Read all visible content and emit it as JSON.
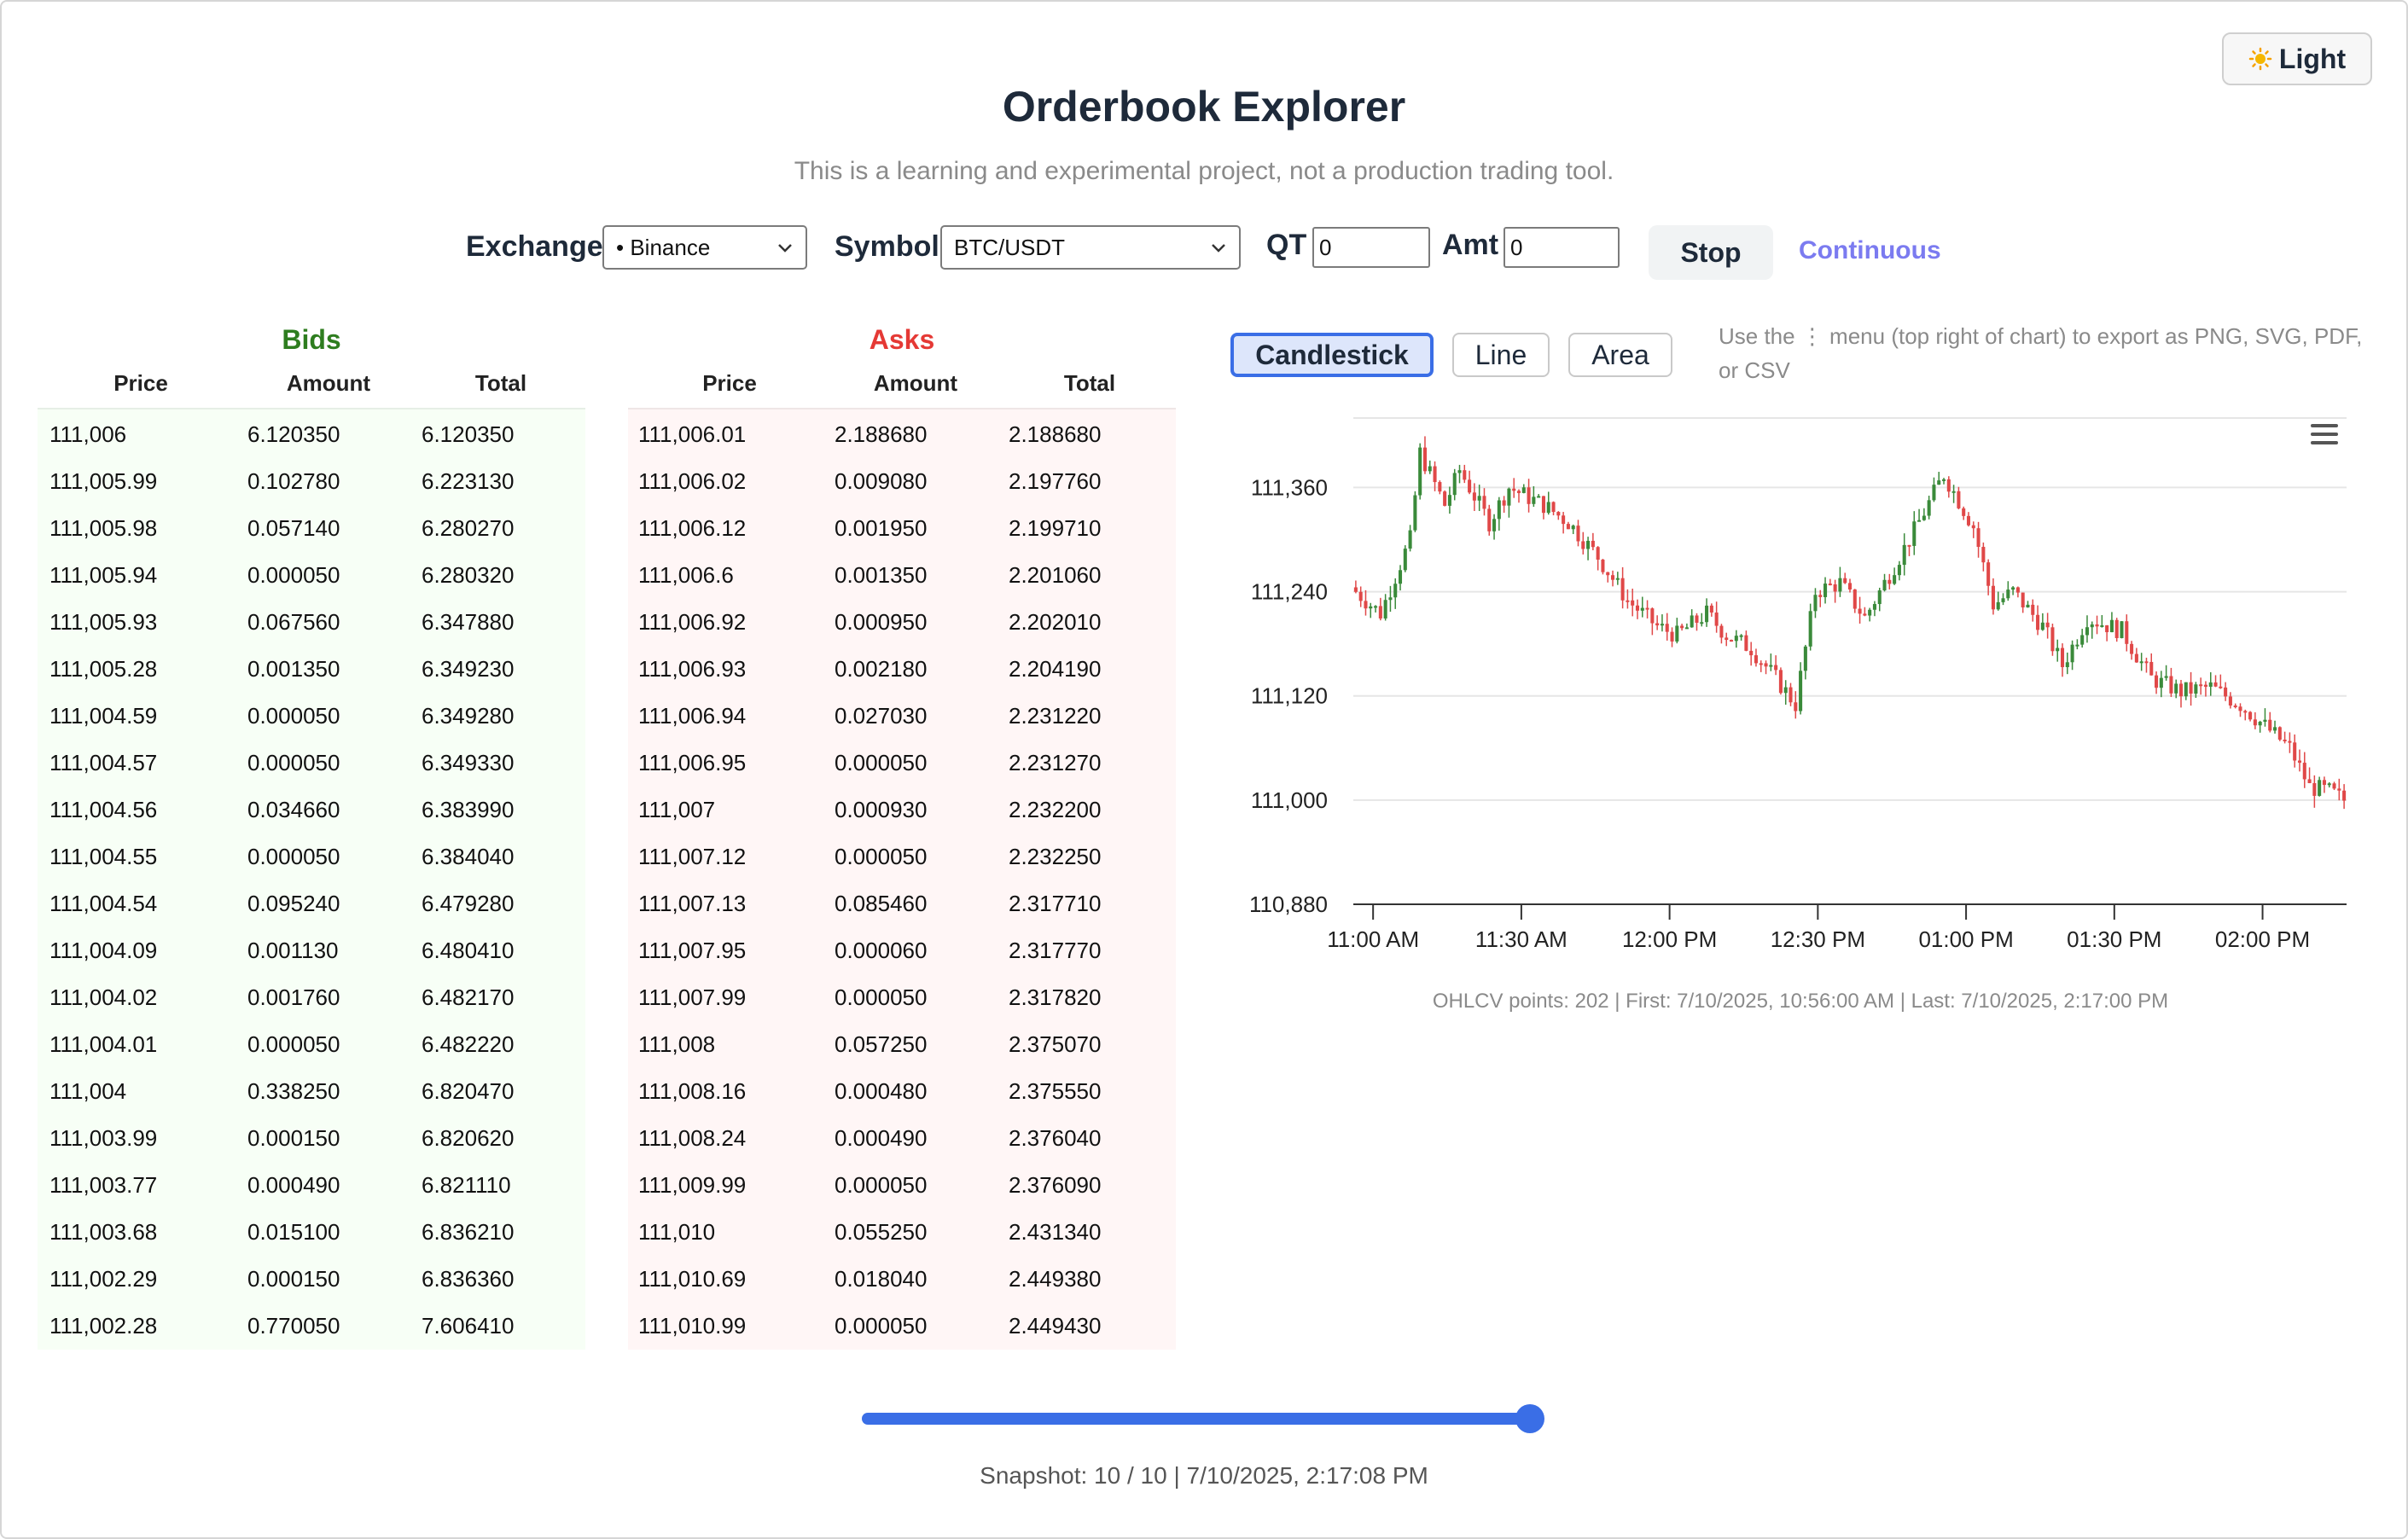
{
  "header": {
    "theme_label": "Light",
    "theme_icon": "sun-icon",
    "title": "Orderbook Explorer",
    "subtitle": "This is a learning and experimental project, not a production trading tool."
  },
  "controls": {
    "exchange_label": "Exchange",
    "exchange_value": "• Binance",
    "symbol_label": "Symbol",
    "symbol_value": "BTC/USDT",
    "qt_label": "QT",
    "qt_value": "0",
    "amt_label": "Amt",
    "amt_value": "0",
    "stop_label": "Stop",
    "continuous_label": "Continuous"
  },
  "colors": {
    "bid": "#2e7d1f",
    "ask": "#e53935",
    "accent": "#3a6ee6",
    "link": "#7b7bf0",
    "up": "#3a8a3a",
    "down": "#e04848"
  },
  "bids": {
    "title": "Bids",
    "columns": [
      "Price",
      "Amount",
      "Total"
    ],
    "rows": [
      [
        "111,006",
        "6.120350",
        "6.120350"
      ],
      [
        "111,005.99",
        "0.102780",
        "6.223130"
      ],
      [
        "111,005.98",
        "0.057140",
        "6.280270"
      ],
      [
        "111,005.94",
        "0.000050",
        "6.280320"
      ],
      [
        "111,005.93",
        "0.067560",
        "6.347880"
      ],
      [
        "111,005.28",
        "0.001350",
        "6.349230"
      ],
      [
        "111,004.59",
        "0.000050",
        "6.349280"
      ],
      [
        "111,004.57",
        "0.000050",
        "6.349330"
      ],
      [
        "111,004.56",
        "0.034660",
        "6.383990"
      ],
      [
        "111,004.55",
        "0.000050",
        "6.384040"
      ],
      [
        "111,004.54",
        "0.095240",
        "6.479280"
      ],
      [
        "111,004.09",
        "0.001130",
        "6.480410"
      ],
      [
        "111,004.02",
        "0.001760",
        "6.482170"
      ],
      [
        "111,004.01",
        "0.000050",
        "6.482220"
      ],
      [
        "111,004",
        "0.338250",
        "6.820470"
      ],
      [
        "111,003.99",
        "0.000150",
        "6.820620"
      ],
      [
        "111,003.77",
        "0.000490",
        "6.821110"
      ],
      [
        "111,003.68",
        "0.015100",
        "6.836210"
      ],
      [
        "111,002.29",
        "0.000150",
        "6.836360"
      ],
      [
        "111,002.28",
        "0.770050",
        "7.606410"
      ]
    ]
  },
  "asks": {
    "title": "Asks",
    "columns": [
      "Price",
      "Amount",
      "Total"
    ],
    "rows": [
      [
        "111,006.01",
        "2.188680",
        "2.188680"
      ],
      [
        "111,006.02",
        "0.009080",
        "2.197760"
      ],
      [
        "111,006.12",
        "0.001950",
        "2.199710"
      ],
      [
        "111,006.6",
        "0.001350",
        "2.201060"
      ],
      [
        "111,006.92",
        "0.000950",
        "2.202010"
      ],
      [
        "111,006.93",
        "0.002180",
        "2.204190"
      ],
      [
        "111,006.94",
        "0.027030",
        "2.231220"
      ],
      [
        "111,006.95",
        "0.000050",
        "2.231270"
      ],
      [
        "111,007",
        "0.000930",
        "2.232200"
      ],
      [
        "111,007.12",
        "0.000050",
        "2.232250"
      ],
      [
        "111,007.13",
        "0.085460",
        "2.317710"
      ],
      [
        "111,007.95",
        "0.000060",
        "2.317770"
      ],
      [
        "111,007.99",
        "0.000050",
        "2.317820"
      ],
      [
        "111,008",
        "0.057250",
        "2.375070"
      ],
      [
        "111,008.16",
        "0.000480",
        "2.375550"
      ],
      [
        "111,008.24",
        "0.000490",
        "2.376040"
      ],
      [
        "111,009.99",
        "0.000050",
        "2.376090"
      ],
      [
        "111,010",
        "0.055250",
        "2.431340"
      ],
      [
        "111,010.69",
        "0.018040",
        "2.449380"
      ],
      [
        "111,010.99",
        "0.000050",
        "2.449430"
      ]
    ]
  },
  "chart_controls": {
    "types": [
      "Candlestick",
      "Line",
      "Area"
    ],
    "active": "Candlestick",
    "hint": "Use the ⋮ menu (top right of chart) to export as PNG, SVG, PDF, or CSV",
    "menu_icon": "hamburger-menu-icon"
  },
  "chart_data": {
    "type": "candlestick",
    "x_ticks": [
      "11:00 AM",
      "11:30 AM",
      "12:00 PM",
      "12:30 PM",
      "01:00 PM",
      "01:30 PM",
      "02:00 PM"
    ],
    "x_tick_minutes": [
      660,
      690,
      720,
      750,
      780,
      810,
      840
    ],
    "x_range_minutes": [
      656,
      857
    ],
    "y_ticks": [
      111360,
      111240,
      111120,
      111000,
      110880
    ],
    "y_tick_labels": [
      "111,360",
      "111,240",
      "111,120",
      "111,000",
      "110,880"
    ],
    "ylim": [
      110880,
      111440
    ],
    "grid": true,
    "path_points": [
      [
        656,
        111245
      ],
      [
        662,
        111215
      ],
      [
        668,
        111300
      ],
      [
        670,
        111400
      ],
      [
        675,
        111340
      ],
      [
        678,
        111380
      ],
      [
        684,
        111320
      ],
      [
        688,
        111360
      ],
      [
        695,
        111340
      ],
      [
        700,
        111320
      ],
      [
        706,
        111280
      ],
      [
        712,
        111230
      ],
      [
        718,
        111200
      ],
      [
        722,
        111190
      ],
      [
        728,
        111215
      ],
      [
        732,
        111190
      ],
      [
        737,
        111175
      ],
      [
        742,
        111140
      ],
      [
        746,
        111110
      ],
      [
        750,
        111240
      ],
      [
        755,
        111250
      ],
      [
        760,
        111210
      ],
      [
        764,
        111250
      ],
      [
        770,
        111310
      ],
      [
        776,
        111375
      ],
      [
        782,
        111315
      ],
      [
        786,
        111225
      ],
      [
        790,
        111240
      ],
      [
        796,
        111200
      ],
      [
        800,
        111155
      ],
      [
        805,
        111210
      ],
      [
        812,
        111195
      ],
      [
        818,
        111140
      ],
      [
        824,
        111125
      ],
      [
        830,
        111130
      ],
      [
        836,
        111110
      ],
      [
        842,
        111080
      ],
      [
        846,
        111060
      ],
      [
        850,
        111015
      ],
      [
        854,
        111010
      ],
      [
        857,
        111000
      ]
    ],
    "footer": "OHLCV points: 202 | First: 7/10/2025, 10:56:00 AM | Last: 7/10/2025, 2:17:00 PM"
  },
  "snapshot": {
    "current": 10,
    "total": 10,
    "label": "Snapshot: 10 / 10  |  7/10/2025, 2:17:08 PM"
  }
}
